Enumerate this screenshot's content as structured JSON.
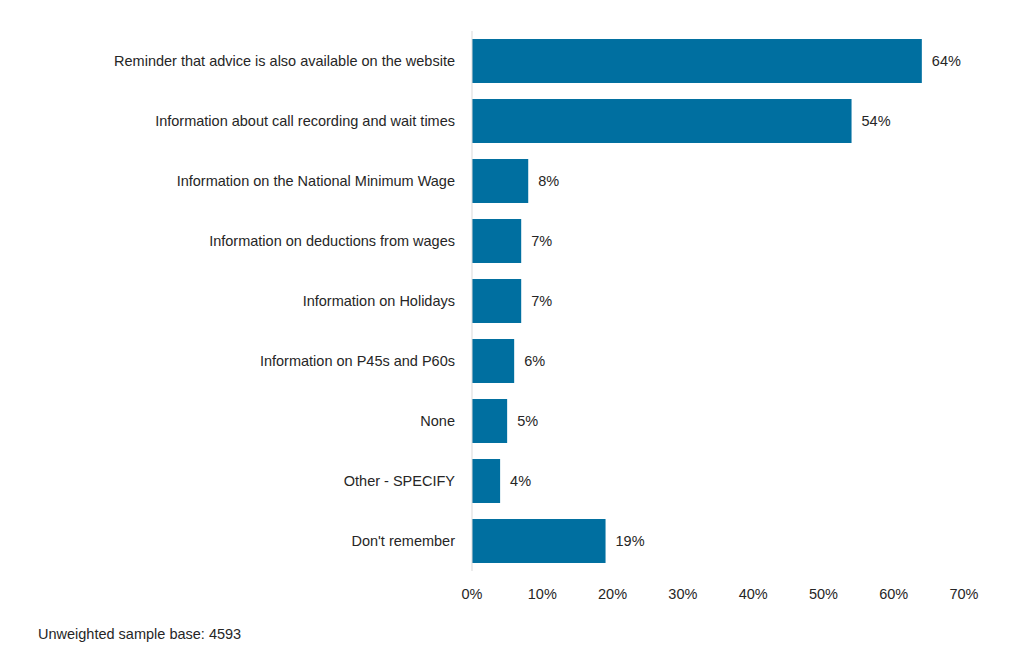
{
  "chart_data": {
    "type": "bar",
    "orientation": "horizontal",
    "categories": [
      "Reminder that advice is also available on the website",
      "Information about call recording and wait times",
      "Information on the National Minimum Wage",
      "Information on deductions from wages",
      "Information on Holidays",
      "Information on P45s and P60s",
      "None",
      "Other - SPECIFY",
      "Don't remember"
    ],
    "values": [
      64,
      54,
      8,
      7,
      7,
      6,
      5,
      4,
      19
    ],
    "value_labels": [
      "64%",
      "54%",
      "8%",
      "7%",
      "7%",
      "6%",
      "5%",
      "4%",
      "19%"
    ],
    "data_labels": true,
    "color": "#006fa0",
    "xlim": [
      0,
      70
    ],
    "xticks": [
      {
        "value": 0,
        "label": "0%"
      },
      {
        "value": 10,
        "label": "10%"
      },
      {
        "value": 20,
        "label": "20%"
      },
      {
        "value": 30,
        "label": "30%"
      },
      {
        "value": 40,
        "label": "40%"
      },
      {
        "value": 50,
        "label": "50%"
      },
      {
        "value": 60,
        "label": "60%"
      },
      {
        "value": 70,
        "label": "70%"
      }
    ],
    "grid": false,
    "annotations": [
      "Unweighted sample base: 4593"
    ]
  }
}
